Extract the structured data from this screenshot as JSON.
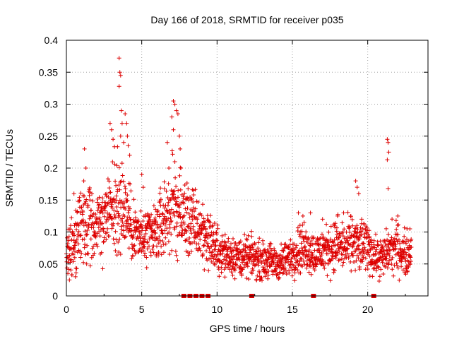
{
  "chart_data": {
    "type": "scatter",
    "title": "Day 166 of 2018, SRMTID for receiver p035",
    "xlabel": "GPS time / hours",
    "ylabel": "SRMTID / TECUs",
    "xlim": [
      0,
      24
    ],
    "ylim": [
      0,
      0.4
    ],
    "xticks": [
      0,
      5,
      10,
      15,
      20
    ],
    "xtick_labels": [
      "0",
      "5",
      "10",
      "15",
      "20"
    ],
    "yticks": [
      0,
      0.05,
      0.1,
      0.15,
      0.2,
      0.25,
      0.3,
      0.35,
      0.4
    ],
    "ytick_labels": [
      "0",
      "0.05",
      "0.1",
      "0.15",
      "0.2",
      "0.25",
      "0.3",
      "0.35",
      "0.4"
    ],
    "grid": true,
    "series": [
      {
        "name": "SRMTID",
        "marker": "plus",
        "color": "#dd0000",
        "profile": [
          [
            0.0,
            0.075
          ],
          [
            0.5,
            0.08
          ],
          [
            1.0,
            0.11
          ],
          [
            1.5,
            0.12
          ],
          [
            2.0,
            0.11
          ],
          [
            2.5,
            0.12
          ],
          [
            3.0,
            0.14
          ],
          [
            3.5,
            0.15
          ],
          [
            4.0,
            0.13
          ],
          [
            4.5,
            0.1
          ],
          [
            5.0,
            0.09
          ],
          [
            5.5,
            0.09
          ],
          [
            6.0,
            0.1
          ],
          [
            6.5,
            0.12
          ],
          [
            7.0,
            0.14
          ],
          [
            7.5,
            0.13
          ],
          [
            8.0,
            0.12
          ],
          [
            8.5,
            0.11
          ],
          [
            9.0,
            0.1
          ],
          [
            9.5,
            0.09
          ],
          [
            10.0,
            0.07
          ],
          [
            10.5,
            0.065
          ],
          [
            11.0,
            0.065
          ],
          [
            11.5,
            0.06
          ],
          [
            12.0,
            0.06
          ],
          [
            12.5,
            0.06
          ],
          [
            13.0,
            0.055
          ],
          [
            13.5,
            0.055
          ],
          [
            14.0,
            0.05
          ],
          [
            14.5,
            0.055
          ],
          [
            15.0,
            0.065
          ],
          [
            15.5,
            0.075
          ],
          [
            16.0,
            0.075
          ],
          [
            16.5,
            0.065
          ],
          [
            17.0,
            0.07
          ],
          [
            17.5,
            0.075
          ],
          [
            18.0,
            0.08
          ],
          [
            18.5,
            0.075
          ],
          [
            19.0,
            0.085
          ],
          [
            19.5,
            0.075
          ],
          [
            20.0,
            0.08
          ],
          [
            20.5,
            0.06
          ],
          [
            21.0,
            0.06
          ],
          [
            21.5,
            0.075
          ],
          [
            22.0,
            0.075
          ],
          [
            22.5,
            0.065
          ],
          [
            22.9,
            0.07
          ]
        ],
        "spikes": [
          [
            1.2,
            0.23
          ],
          [
            1.3,
            0.2
          ],
          [
            2.9,
            0.27
          ],
          [
            3.0,
            0.26
          ],
          [
            3.1,
            0.245
          ],
          [
            3.5,
            0.372
          ],
          [
            3.55,
            0.35
          ],
          [
            3.6,
            0.345
          ],
          [
            3.5,
            0.328
          ],
          [
            3.65,
            0.29
          ],
          [
            3.7,
            0.27
          ],
          [
            3.9,
            0.285
          ],
          [
            4.0,
            0.27
          ],
          [
            4.05,
            0.25
          ],
          [
            4.1,
            0.235
          ],
          [
            3.6,
            0.25
          ],
          [
            3.8,
            0.24
          ],
          [
            4.2,
            0.22
          ],
          [
            5.0,
            0.19
          ],
          [
            5.1,
            0.17
          ],
          [
            6.7,
            0.24
          ],
          [
            6.8,
            0.2
          ],
          [
            7.0,
            0.28
          ],
          [
            7.1,
            0.305
          ],
          [
            7.2,
            0.3
          ],
          [
            7.3,
            0.29
          ],
          [
            7.4,
            0.285
          ],
          [
            7.5,
            0.25
          ],
          [
            7.55,
            0.23
          ],
          [
            7.1,
            0.26
          ],
          [
            7.2,
            0.21
          ],
          [
            7.6,
            0.2
          ],
          [
            19.2,
            0.18
          ],
          [
            19.3,
            0.17
          ],
          [
            19.4,
            0.16
          ],
          [
            21.3,
            0.245
          ],
          [
            21.35,
            0.24
          ],
          [
            21.4,
            0.225
          ],
          [
            21.3,
            0.213
          ],
          [
            21.35,
            0.168
          ],
          [
            15.4,
            0.13
          ],
          [
            15.7,
            0.125
          ],
          [
            16.2,
            0.13
          ],
          [
            17.0,
            0.12
          ],
          [
            18.0,
            0.125
          ],
          [
            18.4,
            0.13
          ],
          [
            19.6,
            0.12
          ],
          [
            22.0,
            0.125
          ],
          [
            22.8,
            0.105
          ],
          [
            0.5,
            0.16
          ],
          [
            0.1,
            0.035
          ],
          [
            0.6,
            0.03
          ],
          [
            0.2,
            0.025
          ]
        ]
      }
    ],
    "marks_on_xaxis": [
      7.8,
      8.2,
      8.6,
      9.0,
      9.4,
      12.3,
      16.4,
      20.4
    ]
  }
}
